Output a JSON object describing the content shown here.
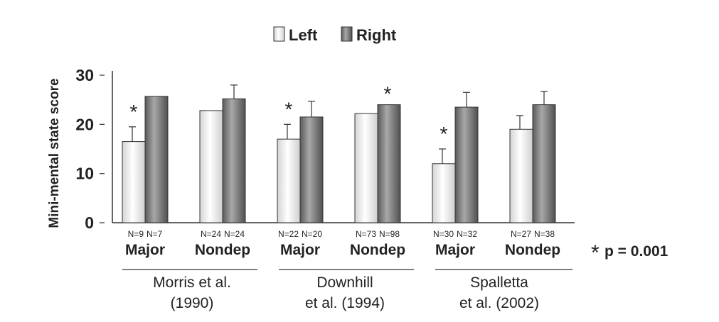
{
  "chart_data": {
    "type": "bar",
    "ylabel": "Mini-mental state score",
    "ylim": [
      0,
      30
    ],
    "yticks": [
      0,
      10,
      20,
      30
    ],
    "grid": false,
    "legend_position": "top-center",
    "series": [
      {
        "name": "Left",
        "color": "#f0f0f0",
        "values": [
          16.5,
          22.8,
          17.0,
          22.2,
          12.0,
          19.0
        ],
        "errors": [
          3.0,
          null,
          3.0,
          null,
          3.0,
          2.8
        ]
      },
      {
        "name": "Right",
        "color": "#707070",
        "values": [
          25.7,
          25.2,
          21.5,
          24.0,
          23.5,
          24.0
        ],
        "errors": [
          null,
          2.8,
          3.2,
          null,
          3.0,
          2.7
        ]
      }
    ],
    "groups": [
      {
        "label": "Major",
        "n_left": "N=9",
        "n_right": "N=7",
        "left_star": true
      },
      {
        "label": "Nondep",
        "n_left": "N=24",
        "n_right": "N=24",
        "left_star": false
      },
      {
        "label": "Major",
        "n_left": "N=22",
        "n_right": "N=20",
        "left_star": true
      },
      {
        "label": "Nondep",
        "n_left": "N=73",
        "n_right": "N=98",
        "left_star": false,
        "mid_star": true
      },
      {
        "label": "Major",
        "n_left": "N=30",
        "n_right": "N=32",
        "left_star": true
      },
      {
        "label": "Nondep",
        "n_left": "N=27",
        "n_right": "N=38",
        "left_star": false
      }
    ],
    "studies": [
      {
        "line1": "Morris et al.",
        "line2": "(1990)"
      },
      {
        "line1": "Downhill",
        "line2": "et al. (1994)"
      },
      {
        "line1": "Spalletta",
        "line2": "et al. (2002)"
      }
    ],
    "footnote": {
      "symbol": "*",
      "text": "p = 0.001"
    }
  }
}
